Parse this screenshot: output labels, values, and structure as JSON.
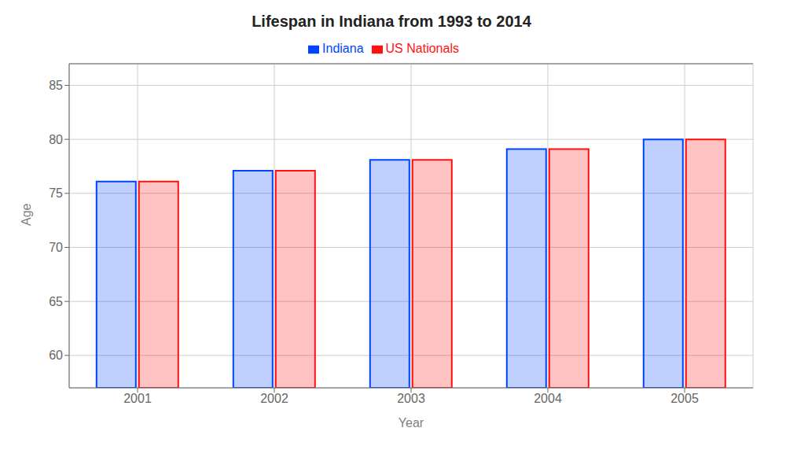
{
  "chart_data": {
    "type": "bar",
    "title": "Lifespan in Indiana from 1993 to 2014",
    "xlabel": "Year",
    "ylabel": "Age",
    "categories": [
      "2001",
      "2002",
      "2003",
      "2004",
      "2005"
    ],
    "series": [
      {
        "name": "Indiana",
        "color": "#0044ff",
        "values": [
          76.1,
          77.1,
          78.1,
          79.1,
          80.0
        ]
      },
      {
        "name": "US Nationals",
        "color": "#ff1111",
        "values": [
          76.1,
          77.1,
          78.1,
          79.1,
          80.0
        ]
      }
    ],
    "ylim": [
      57,
      87
    ],
    "yticks": [
      60,
      65,
      70,
      75,
      80,
      85
    ],
    "grid": true,
    "legend": "top"
  }
}
